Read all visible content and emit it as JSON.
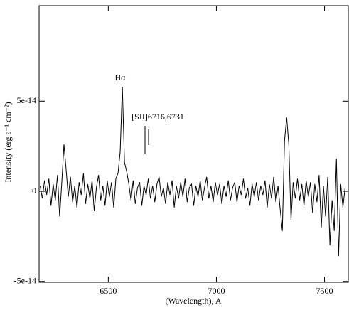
{
  "chart_data": {
    "type": "line",
    "xlabel": "(Wavelength), A",
    "ylabel": "Intensity (erg s⁻¹ cm⁻²)",
    "annotations": [
      "Hα",
      "[SII]6716,6731"
    ],
    "xlim": [
      6180,
      7610
    ],
    "xticks": [
      6500,
      7000,
      7500
    ],
    "ylim": [
      -5.05e-14,
      1.03e-13
    ],
    "yticks": [
      -5e-14,
      0,
      5e-14
    ],
    "series": [
      {
        "color": "#000000",
        "x": [
          6185,
          6195,
          6205,
          6215,
          6225,
          6235,
          6245,
          6255,
          6265,
          6275,
          6285,
          6295,
          6305,
          6315,
          6325,
          6335,
          6345,
          6355,
          6365,
          6375,
          6385,
          6395,
          6405,
          6415,
          6425,
          6435,
          6445,
          6455,
          6465,
          6475,
          6485,
          6495,
          6505,
          6515,
          6525,
          6535,
          6545,
          6555,
          6565,
          6575,
          6585,
          6595,
          6605,
          6615,
          6625,
          6635,
          6645,
          6655,
          6665,
          6675,
          6685,
          6695,
          6705,
          6715,
          6725,
          6735,
          6745,
          6755,
          6765,
          6775,
          6785,
          6795,
          6805,
          6815,
          6825,
          6835,
          6845,
          6855,
          6865,
          6875,
          6885,
          6895,
          6905,
          6915,
          6925,
          6935,
          6945,
          6955,
          6965,
          6975,
          6985,
          6995,
          7005,
          7015,
          7025,
          7035,
          7045,
          7055,
          7065,
          7075,
          7085,
          7095,
          7105,
          7115,
          7125,
          7135,
          7145,
          7155,
          7165,
          7175,
          7185,
          7195,
          7205,
          7215,
          7225,
          7235,
          7245,
          7255,
          7265,
          7275,
          7285,
          7295,
          7305,
          7315,
          7325,
          7335,
          7345,
          7355,
          7365,
          7375,
          7385,
          7395,
          7405,
          7415,
          7425,
          7435,
          7445,
          7455,
          7465,
          7475,
          7485,
          7495,
          7505,
          7515,
          7525,
          7535,
          7545,
          7555,
          7565,
          7575,
          7585,
          7595
        ],
        "values": [
          3e-15,
          -4e-15,
          6e-15,
          -2e-15,
          7e-15,
          -8e-15,
          4e-15,
          -5e-15,
          9e-15,
          -1.4e-14,
          5e-15,
          2.6e-14,
          1.2e-14,
          -3e-15,
          8e-15,
          -6e-15,
          3e-15,
          -9e-15,
          5e-15,
          -2e-15,
          1e-14,
          -7e-15,
          4e-15,
          -4e-15,
          6e-15,
          -1.1e-14,
          2e-15,
          9e-15,
          -5e-15,
          3e-15,
          -8e-15,
          6e-15,
          -3e-15,
          5e-15,
          -9e-15,
          7e-15,
          1e-14,
          2.2e-14,
          5.8e-14,
          1.6e-14,
          1.1e-14,
          4e-15,
          -5e-15,
          6e-15,
          -7e-15,
          2e-15,
          5e-15,
          -8e-15,
          3e-15,
          -2e-15,
          7e-15,
          -4e-15,
          3e-15,
          -6e-15,
          4e-15,
          8e-15,
          -3e-15,
          2e-15,
          -7e-15,
          5e-15,
          -2e-15,
          6e-15,
          -9e-15,
          3e-15,
          -4e-15,
          5e-15,
          -3e-15,
          7e-15,
          -6e-15,
          2e-15,
          4e-15,
          -8e-15,
          3e-15,
          -3e-15,
          6e-15,
          -5e-15,
          2e-15,
          8e-15,
          -4e-15,
          3e-15,
          -6e-15,
          5e-15,
          -2e-15,
          4e-15,
          -7e-15,
          3e-15,
          -3e-15,
          6e-15,
          -5e-15,
          2e-15,
          5e-15,
          -6e-15,
          3e-15,
          -2e-15,
          7e-15,
          -4e-15,
          2e-15,
          -8e-15,
          4e-15,
          -3e-15,
          5e-15,
          -5e-15,
          3e-15,
          -2e-15,
          6e-15,
          -9e-15,
          4e-15,
          -4e-15,
          8e-15,
          -6e-15,
          3e-15,
          -1e-14,
          -2.2e-14,
          2.8e-14,
          4.1e-14,
          2.6e-14,
          -1.6e-14,
          5e-15,
          -4e-15,
          7e-15,
          -5e-15,
          4e-15,
          -8e-15,
          6e-15,
          -3e-15,
          5e-15,
          -1.2e-14,
          4e-15,
          -6e-15,
          9e-15,
          -2e-14,
          3e-15,
          -1.4e-14,
          8e-15,
          -3e-14,
          -5e-15,
          -2.2e-14,
          1.8e-14,
          -3.6e-14,
          4e-15,
          -9e-15,
          2e-15
        ]
      }
    ]
  }
}
